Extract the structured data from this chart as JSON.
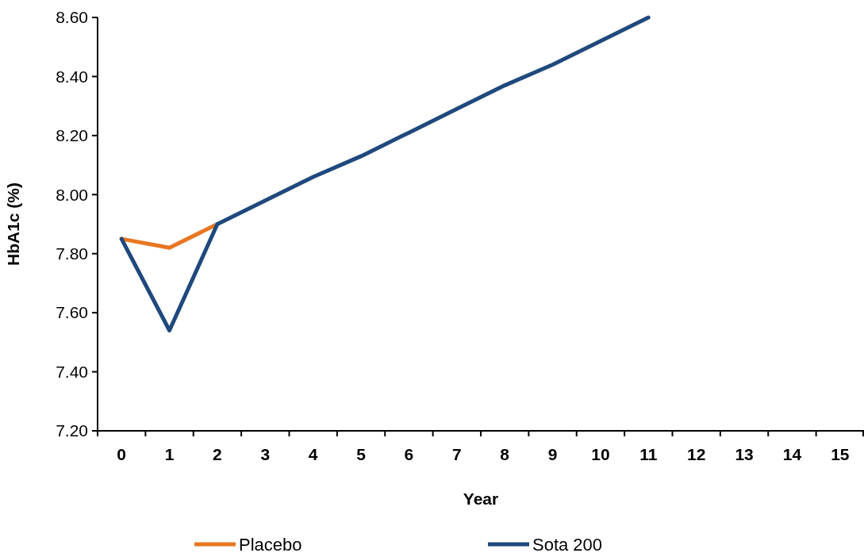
{
  "chart_data": {
    "type": "line",
    "xlabel": "Year",
    "ylabel": "HbA1c (%)",
    "categories": [
      "0",
      "1",
      "2",
      "3",
      "4",
      "5",
      "6",
      "7",
      "8",
      "9",
      "10",
      "11",
      "12",
      "13",
      "14",
      "15"
    ],
    "series": [
      {
        "name": "Placebo",
        "color": "#e87722",
        "values": [
          7.85,
          7.82,
          7.9,
          null,
          null,
          null,
          null,
          null,
          null,
          null,
          null,
          null,
          null,
          null,
          null,
          null
        ]
      },
      {
        "name": "Sota 200",
        "color": "#1f497d",
        "values": [
          7.85,
          7.54,
          7.9,
          7.98,
          8.06,
          8.13,
          8.21,
          8.29,
          8.37,
          8.44,
          8.52,
          8.6,
          null,
          null,
          null,
          null
        ]
      }
    ],
    "ylim": [
      7.2,
      8.6
    ],
    "yticks": [
      {
        "value": 7.2,
        "label": "7.20"
      },
      {
        "value": 7.4,
        "label": "7.40"
      },
      {
        "value": 7.6,
        "label": "7.60"
      },
      {
        "value": 7.8,
        "label": "7.80"
      },
      {
        "value": 8.0,
        "label": "8.00"
      },
      {
        "value": 8.2,
        "label": "8.20"
      },
      {
        "value": 8.4,
        "label": "8.40"
      },
      {
        "value": 8.6,
        "label": "8.60"
      }
    ],
    "grid": false,
    "legend": "bottom",
    "marker": "none",
    "line_style": "solid"
  }
}
